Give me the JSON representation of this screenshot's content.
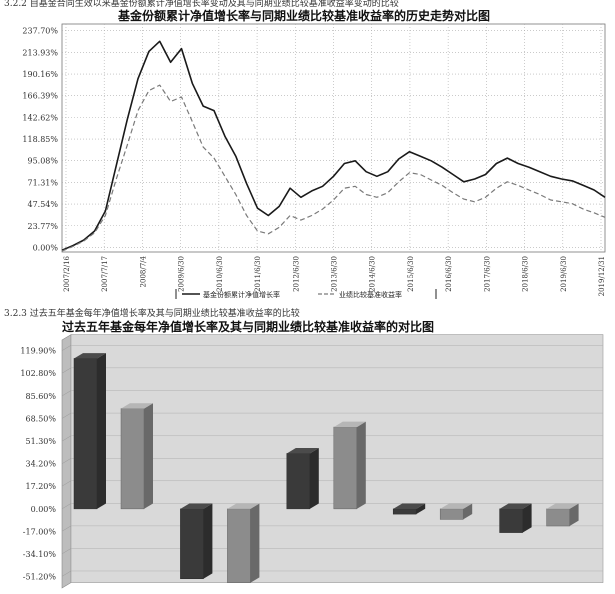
{
  "sections": {
    "top_caption": "3.2.2 自基金合同生效以来基金份额累计净值增长率变动及其与同期业绩比较基准收益率变动的比较",
    "bottom_caption": "3.2.3 过去五年基金每年净值增长率及其与同期业绩比较基准收益率的比较"
  },
  "chart_data": [
    {
      "type": "line",
      "title": "基金份额累计净值增长率与同期业绩比较基准收益率的历史走势对比图",
      "yticks": [
        "0.00%",
        "23.77%",
        "47.54%",
        "71.31%",
        "95.08%",
        "118.85%",
        "142.62%",
        "166.39%",
        "190.16%",
        "213.93%",
        "237.70%"
      ],
      "ylim": [
        -5,
        245
      ],
      "y_unit": "%",
      "xticks": [
        "2007/2/16",
        "2007/7/17",
        "2008/7/4",
        "2009/6/30",
        "2010/6/30",
        "2011/6/30",
        "2012/6/30",
        "2013/6/30",
        "2014/6/30",
        "2015/6/30",
        "2016/6/30",
        "2017/6/30",
        "2018/6/30",
        "2019/6/30",
        "2019/12/31"
      ],
      "legend_position": "bottom",
      "grid": true,
      "series": [
        {
          "name": "基金份额累计净值增长率",
          "color": "#1a1a1a",
          "style": "solid",
          "x": [
            0,
            0.02,
            0.04,
            0.06,
            0.08,
            0.1,
            0.12,
            0.14,
            0.16,
            0.18,
            0.2,
            0.22,
            0.24,
            0.26,
            0.28,
            0.3,
            0.32,
            0.34,
            0.36,
            0.38,
            0.4,
            0.42,
            0.44,
            0.46,
            0.48,
            0.5,
            0.52,
            0.54,
            0.56,
            0.58,
            0.6,
            0.62,
            0.64,
            0.66,
            0.68,
            0.7,
            0.72,
            0.74,
            0.76,
            0.78,
            0.8,
            0.82,
            0.84,
            0.86,
            0.88,
            0.9,
            0.92,
            0.94,
            0.96,
            0.98,
            1
          ],
          "y": [
            -3,
            2,
            8,
            18,
            40,
            90,
            140,
            185,
            215,
            226,
            203,
            218,
            180,
            155,
            150,
            122,
            100,
            70,
            43,
            35,
            45,
            65,
            55,
            62,
            67,
            78,
            92,
            95,
            83,
            78,
            83,
            97,
            105,
            100,
            95,
            88,
            80,
            72,
            75,
            80,
            92,
            98,
            92,
            88,
            83,
            78,
            75,
            73,
            68,
            63,
            55
          ]
        },
        {
          "name": "业绩比较基准收益率",
          "color": "#7a7a7a",
          "style": "dashed",
          "x": [
            0,
            0.02,
            0.04,
            0.06,
            0.08,
            0.1,
            0.12,
            0.14,
            0.16,
            0.18,
            0.2,
            0.22,
            0.24,
            0.26,
            0.28,
            0.3,
            0.32,
            0.34,
            0.36,
            0.38,
            0.4,
            0.42,
            0.44,
            0.46,
            0.48,
            0.5,
            0.52,
            0.54,
            0.56,
            0.58,
            0.6,
            0.62,
            0.64,
            0.66,
            0.68,
            0.7,
            0.72,
            0.74,
            0.76,
            0.78,
            0.8,
            0.82,
            0.84,
            0.86,
            0.88,
            0.9,
            0.92,
            0.94,
            0.96,
            0.98,
            1
          ],
          "y": [
            -4,
            1,
            7,
            16,
            35,
            75,
            112,
            150,
            172,
            178,
            160,
            165,
            138,
            110,
            98,
            78,
            58,
            35,
            18,
            15,
            22,
            35,
            30,
            35,
            42,
            52,
            65,
            67,
            58,
            55,
            60,
            72,
            82,
            80,
            74,
            68,
            60,
            53,
            50,
            55,
            65,
            72,
            68,
            63,
            58,
            52,
            50,
            48,
            42,
            38,
            33
          ]
        }
      ]
    },
    {
      "type": "bar",
      "title": "过去五年基金每年净值增长率及其与同期业绩比较基准收益率的对比图",
      "yticks": [
        "-51.20%",
        "-34.10%",
        "-17.00%",
        "0.00%",
        "17.20%",
        "34.20%",
        "51.30%",
        "68.50%",
        "85.60%",
        "102.80%",
        "119.90%"
      ],
      "ylim": [
        -60,
        128
      ],
      "y_unit": "%",
      "categories": [
        "",
        "",
        "",
        "",
        ""
      ],
      "series": [
        {
          "color": "#3a3a3a",
          "values": [
            114,
            -53,
            42,
            -4,
            -18
          ]
        },
        {
          "color": "#8c8c8c",
          "values": [
            76,
            -56,
            62,
            -8,
            -13
          ]
        }
      ]
    }
  ]
}
